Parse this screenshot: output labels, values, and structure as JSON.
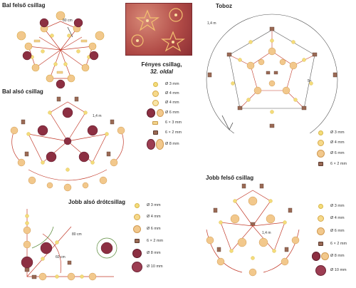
{
  "titles": {
    "top_left": "Bal felső csillag",
    "bottom_left_upper": "Bal alsó csillag",
    "bottom_left": "Jobb alsó drótcsillag",
    "top_right": "Toboz",
    "bottom_right": "Jobb felső csillag"
  },
  "caption": {
    "line1": "Fényes csillag,",
    "line2": "32. oldal"
  },
  "annotations": {
    "tl_wire": "80 cm",
    "mid_wire": "1,4 m",
    "bl_wire1": "80 cm",
    "bl_wire2": "60 cm",
    "toboz_wire": "1,4 m",
    "toboz_x": "5×",
    "br_wire": "1,4 m"
  },
  "legends": {
    "mid": [
      "Ø 3 mm",
      "Ø 4 mm",
      "Ø 4 mm",
      "Ø 6 mm",
      "6 × 3 mm",
      "6 × 2 mm",
      "Ø 8 mm"
    ],
    "toboz": [
      "Ø 3 mm",
      "Ø 4 mm",
      "Ø 6 mm",
      "6 × 2 mm"
    ],
    "bottom_left": [
      "Ø 3 mm",
      "Ø 4 mm",
      "Ø 6 mm",
      "6 × 2 mm",
      "Ø 8 mm",
      "Ø 10 mm"
    ],
    "bottom_right": [
      "Ø 3 mm",
      "Ø 4 mm",
      "Ø 6 mm",
      "6 × 2 mm",
      "Ø 8 mm",
      "Ø 10 mm"
    ]
  },
  "colors": {
    "gold_small": "#f4dc7a",
    "peach": "#f2c88c",
    "burgundy": "#8c2f42",
    "wire": "#c23a2a",
    "wire_green": "#5a8a3a"
  }
}
